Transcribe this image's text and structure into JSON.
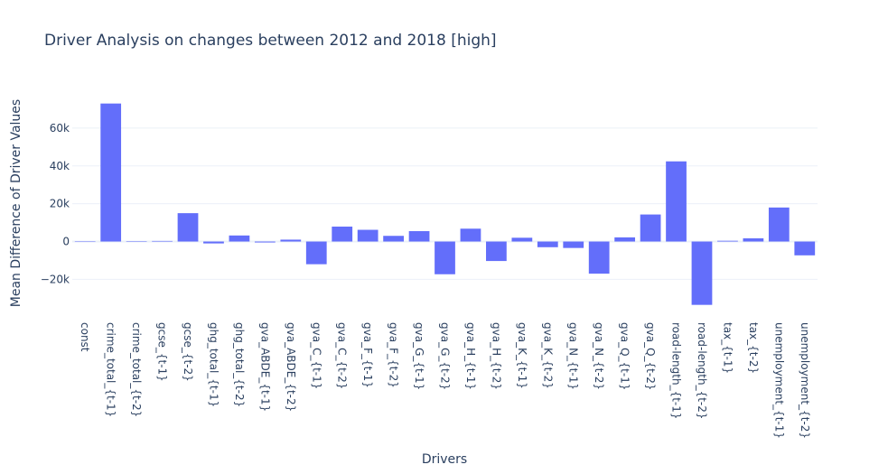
{
  "chart_data": {
    "type": "bar",
    "title": "Driver Analysis on changes between 2012 and 2018 [high]",
    "xlabel": "Drivers",
    "ylabel": "Mean Difference of Driver Values",
    "categories": [
      "const",
      "crime_total_{t-1}",
      "crime_total_{t-2}",
      "gcse_{t-1}",
      "gcse_{t-2}",
      "ghg_total_{t-1}",
      "ghg_total_{t-2}",
      "gva_ABDE_{t-1}",
      "gva_ABDE_{t-2}",
      "gva_C_{t-1}",
      "gva_C_{t-2}",
      "gva_F_{t-1}",
      "gva_F_{t-2}",
      "gva_G_{t-1}",
      "gva_G_{t-2}",
      "gva_H_{t-1}",
      "gva_H_{t-2}",
      "gva_K_{t-1}",
      "gva_K_{t-2}",
      "gva_N_{t-1}",
      "gva_N_{t-2}",
      "gva_Q_{t-1}",
      "gva_Q_{t-2}",
      "road-length_{t-1}",
      "road-length_{t-2}",
      "tax_{t-1}",
      "tax_{t-2}",
      "unemployment_{t-1}",
      "unemployment_{t-2}"
    ],
    "values": [
      0,
      73000,
      200,
      300,
      15000,
      -1000,
      3200,
      -500,
      1000,
      -12000,
      7900,
      6200,
      3000,
      5500,
      -17300,
      6800,
      -10300,
      2000,
      -3000,
      -3400,
      -17000,
      2200,
      14300,
      42400,
      -33500,
      400,
      1700,
      18000,
      -7300
    ],
    "ylim": [
      -37000,
      80000
    ],
    "yticks": [
      -20000,
      0,
      20000,
      40000,
      60000
    ],
    "ytick_labels": [
      "−20k",
      "0",
      "20k",
      "40k",
      "60k"
    ],
    "grid": true,
    "bar_color": "#636efa"
  }
}
